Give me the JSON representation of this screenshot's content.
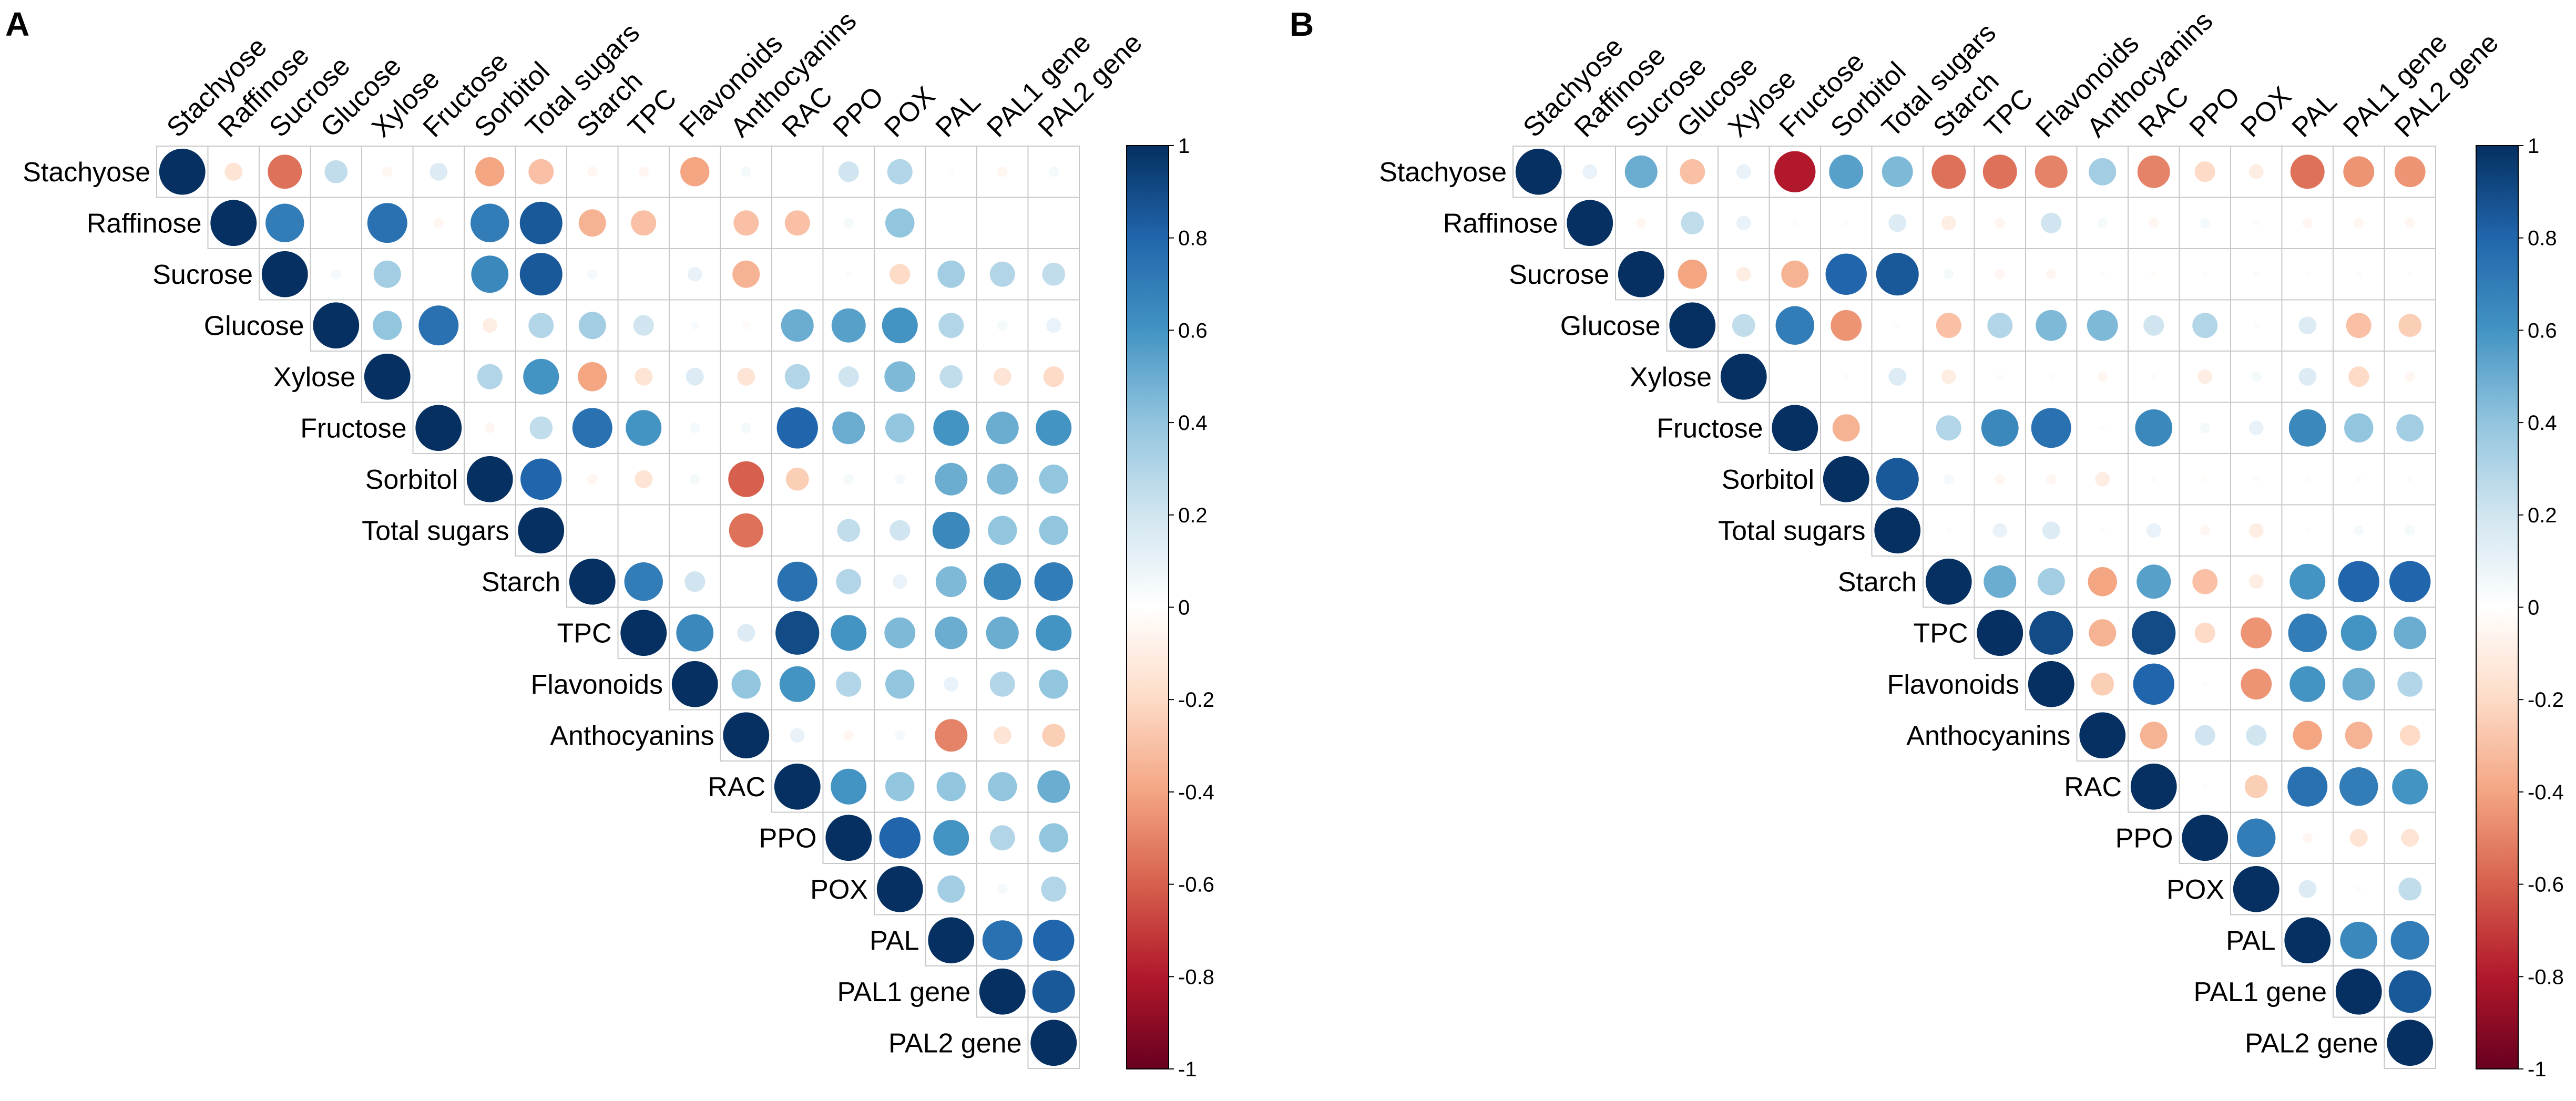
{
  "figure": {
    "panels": [
      "A",
      "B"
    ]
  },
  "chart_data": [
    {
      "type": "heatmap",
      "subtype": "correlation-circle-upper-triangle",
      "panel_label": "A",
      "title": "",
      "variables": [
        "Stachyose",
        "Raffinose",
        "Sucrose",
        "Glucose",
        "Xylose",
        "Fructose",
        "Sorbitol",
        "Total sugars",
        "Starch",
        "TPC",
        "Flavonoids",
        "Anthocyanins",
        "RAC",
        "PPO",
        "POX",
        "PAL",
        "PAL1 gene",
        "PAL2 gene"
      ],
      "colorbar": {
        "range": [
          -1,
          1
        ],
        "ticks": [
          "1",
          "0.8",
          "0.6",
          "0.4",
          "0.2",
          "0",
          "-0.2",
          "-0.4",
          "-0.6",
          "-0.8",
          "-1"
        ]
      },
      "matrix": [
        [
          1,
          -0.15,
          -0.55,
          0.25,
          -0.05,
          0.15,
          -0.4,
          -0.3,
          -0.05,
          -0.05,
          -0.4,
          0.05,
          0,
          0.2,
          0.3,
          0.02,
          -0.05,
          0.05
        ],
        [
          null,
          1,
          0.7,
          0,
          0.75,
          -0.05,
          0.7,
          0.85,
          -0.35,
          -0.3,
          0,
          -0.3,
          -0.3,
          0.05,
          0.4,
          0,
          0,
          0
        ],
        [
          null,
          null,
          1,
          0.05,
          0.35,
          0,
          0.65,
          0.85,
          0.05,
          0,
          0.1,
          -0.35,
          0,
          -0.02,
          -0.2,
          0.35,
          0.3,
          0.25
        ],
        [
          null,
          null,
          null,
          1,
          0.4,
          0.75,
          -0.1,
          0.3,
          0.35,
          0.2,
          0.03,
          -0.03,
          0.5,
          0.55,
          0.6,
          0.3,
          0.05,
          0.1
        ],
        [
          null,
          null,
          null,
          null,
          1,
          0,
          0.3,
          0.6,
          -0.4,
          -0.15,
          0.15,
          -0.15,
          0.3,
          0.2,
          0.45,
          0.25,
          -0.15,
          -0.2
        ],
        [
          null,
          null,
          null,
          null,
          null,
          1,
          -0.05,
          0.25,
          0.75,
          0.6,
          0.05,
          0.05,
          0.8,
          0.5,
          0.4,
          0.6,
          0.5,
          0.6
        ],
        [
          null,
          null,
          null,
          null,
          null,
          null,
          1,
          0.8,
          -0.05,
          -0.15,
          0.05,
          -0.6,
          -0.25,
          0.05,
          0.05,
          0.5,
          0.45,
          0.4
        ],
        [
          null,
          null,
          null,
          null,
          null,
          null,
          null,
          1,
          0,
          0,
          0,
          -0.55,
          0,
          0.25,
          0.2,
          0.65,
          0.4,
          0.4
        ],
        [
          null,
          null,
          null,
          null,
          null,
          null,
          null,
          null,
          1,
          0.7,
          0.2,
          0,
          0.75,
          0.3,
          0.1,
          0.45,
          0.65,
          0.7
        ],
        [
          null,
          null,
          null,
          null,
          null,
          null,
          null,
          null,
          null,
          1,
          0.65,
          0.15,
          0.9,
          0.6,
          0.45,
          0.5,
          0.5,
          0.6
        ],
        [
          null,
          null,
          null,
          null,
          null,
          null,
          null,
          null,
          null,
          null,
          1,
          0.4,
          0.6,
          0.3,
          0.4,
          0.1,
          0.3,
          0.4
        ],
        [
          null,
          null,
          null,
          null,
          null,
          null,
          null,
          null,
          null,
          null,
          null,
          1,
          0.1,
          -0.05,
          0.05,
          -0.5,
          -0.15,
          -0.25
        ],
        [
          null,
          null,
          null,
          null,
          null,
          null,
          null,
          null,
          null,
          null,
          null,
          null,
          1,
          0.6,
          0.4,
          0.4,
          0.4,
          0.5
        ],
        [
          null,
          null,
          null,
          null,
          null,
          null,
          null,
          null,
          null,
          null,
          null,
          null,
          null,
          1,
          0.8,
          0.6,
          0.3,
          0.4
        ],
        [
          null,
          null,
          null,
          null,
          null,
          null,
          null,
          null,
          null,
          null,
          null,
          null,
          null,
          null,
          1,
          0.35,
          0.05,
          0.3
        ],
        [
          null,
          null,
          null,
          null,
          null,
          null,
          null,
          null,
          null,
          null,
          null,
          null,
          null,
          null,
          null,
          1,
          0.75,
          0.8
        ],
        [
          null,
          null,
          null,
          null,
          null,
          null,
          null,
          null,
          null,
          null,
          null,
          null,
          null,
          null,
          null,
          null,
          1,
          0.85
        ],
        [
          null,
          null,
          null,
          null,
          null,
          null,
          null,
          null,
          null,
          null,
          null,
          null,
          null,
          null,
          null,
          null,
          null,
          1
        ]
      ]
    },
    {
      "type": "heatmap",
      "subtype": "correlation-circle-upper-triangle",
      "panel_label": "B",
      "title": "",
      "variables": [
        "Stachyose",
        "Raffinose",
        "Sucrose",
        "Glucose",
        "Xylose",
        "Fructose",
        "Sorbitol",
        "Total sugars",
        "Starch",
        "TPC",
        "Flavonoids",
        "Anthocyanins",
        "RAC",
        "PPO",
        "POX",
        "PAL",
        "PAL1 gene",
        "PAL2 gene"
      ],
      "colorbar": {
        "range": [
          -1,
          1
        ],
        "ticks": [
          "1",
          "0.8",
          "0.6",
          "0.4",
          "0.2",
          "0",
          "-0.2",
          "-0.4",
          "-0.6",
          "-0.8",
          "-1"
        ]
      },
      "matrix": [
        [
          1,
          0.1,
          0.5,
          -0.3,
          0.1,
          -0.8,
          0.55,
          0.45,
          -0.55,
          -0.55,
          -0.5,
          0.35,
          -0.5,
          -0.2,
          -0.1,
          -0.55,
          -0.45,
          -0.45
        ],
        [
          null,
          1,
          -0.05,
          0.25,
          0.1,
          0.02,
          0.02,
          0.15,
          -0.1,
          -0.05,
          0.2,
          0.05,
          -0.05,
          0.05,
          0.02,
          -0.05,
          -0.05,
          -0.05
        ],
        [
          null,
          null,
          1,
          -0.4,
          -0.1,
          -0.35,
          0.8,
          0.85,
          0.05,
          -0.05,
          -0.05,
          0.02,
          -0.02,
          0.02,
          -0.02,
          0.02,
          0.02,
          0.02
        ],
        [
          null,
          null,
          null,
          1,
          0.25,
          0.7,
          -0.45,
          0.02,
          -0.3,
          0.3,
          0.45,
          0.45,
          0.2,
          0.3,
          0.02,
          0.15,
          -0.3,
          -0.25
        ],
        [
          null,
          null,
          null,
          null,
          1,
          0,
          0.02,
          0.15,
          -0.1,
          0.02,
          0.02,
          -0.05,
          0.02,
          -0.1,
          0.05,
          0.15,
          -0.2,
          -0.05
        ],
        [
          null,
          null,
          null,
          null,
          null,
          1,
          -0.35,
          0,
          0.3,
          0.65,
          0.75,
          0.02,
          0.65,
          0.05,
          0.1,
          0.65,
          0.4,
          0.35
        ],
        [
          null,
          null,
          null,
          null,
          null,
          null,
          1,
          0.85,
          0.05,
          -0.05,
          -0.05,
          -0.1,
          0.02,
          -0.02,
          -0.02,
          0.02,
          0.02,
          0.02
        ],
        [
          null,
          null,
          null,
          null,
          null,
          null,
          null,
          1,
          0.02,
          0.1,
          0.15,
          0.02,
          0.1,
          -0.05,
          -0.1,
          0.02,
          0.05,
          0.05
        ],
        [
          null,
          null,
          null,
          null,
          null,
          null,
          null,
          null,
          1,
          0.5,
          0.35,
          -0.4,
          0.55,
          -0.3,
          -0.1,
          0.6,
          0.8,
          0.8
        ],
        [
          null,
          null,
          null,
          null,
          null,
          null,
          null,
          null,
          null,
          1,
          0.9,
          -0.35,
          0.9,
          -0.2,
          -0.45,
          0.7,
          0.6,
          0.5
        ],
        [
          null,
          null,
          null,
          null,
          null,
          null,
          null,
          null,
          null,
          null,
          1,
          -0.25,
          0.8,
          0.02,
          -0.45,
          0.6,
          0.5,
          0.3
        ],
        [
          null,
          null,
          null,
          null,
          null,
          null,
          null,
          null,
          null,
          null,
          null,
          1,
          -0.35,
          0.2,
          0.2,
          -0.4,
          -0.35,
          -0.2
        ],
        [
          null,
          null,
          null,
          null,
          null,
          null,
          null,
          null,
          null,
          null,
          null,
          null,
          1,
          0.02,
          -0.25,
          0.75,
          0.7,
          0.6
        ],
        [
          null,
          null,
          null,
          null,
          null,
          null,
          null,
          null,
          null,
          null,
          null,
          null,
          null,
          1,
          0.7,
          -0.05,
          -0.15,
          -0.15
        ],
        [
          null,
          null,
          null,
          null,
          null,
          null,
          null,
          null,
          null,
          null,
          null,
          null,
          null,
          null,
          1,
          0.15,
          0.02,
          0.25
        ],
        [
          null,
          null,
          null,
          null,
          null,
          null,
          null,
          null,
          null,
          null,
          null,
          null,
          null,
          null,
          null,
          1,
          0.65,
          0.7
        ],
        [
          null,
          null,
          null,
          null,
          null,
          null,
          null,
          null,
          null,
          null,
          null,
          null,
          null,
          null,
          null,
          null,
          1,
          0.85
        ],
        [
          null,
          null,
          null,
          null,
          null,
          null,
          null,
          null,
          null,
          null,
          null,
          null,
          null,
          null,
          null,
          null,
          null,
          1
        ]
      ]
    }
  ]
}
